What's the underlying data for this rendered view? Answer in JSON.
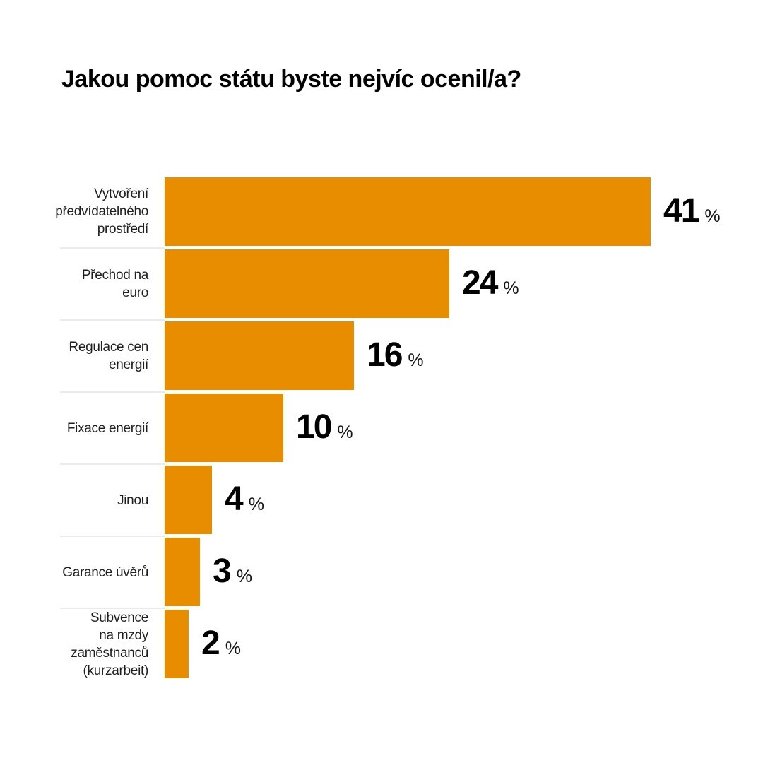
{
  "chart_data": {
    "type": "bar",
    "orientation": "horizontal",
    "title": "Jakou pomoc státu byste nejvíc ocenil/a?",
    "unit": "%",
    "xlim": [
      0,
      41
    ],
    "grid": false,
    "legend": false,
    "categories": [
      "Vytvoření předvídatelného prostředí",
      "Přechod na euro",
      "Regulace cen energií",
      "Fixace energií",
      "Jinou",
      "Garance úvěrů",
      "Subvence na mzdy zaměstnanců (kurzarbeit)"
    ],
    "values": [
      41,
      24,
      16,
      10,
      4,
      3,
      2
    ],
    "label_line_breaks": [
      [
        "Vytvoření",
        "předvídatelného",
        "prostředí"
      ],
      [
        "Přechod na",
        "euro"
      ],
      [
        "Regulace cen",
        "energií"
      ],
      [
        "Fixace energií"
      ],
      [
        "Jinou"
      ],
      [
        "Garance úvěrů"
      ],
      [
        "Subvence",
        "na mzdy",
        "zaměstnanců",
        "(kurzarbeit)"
      ]
    ],
    "bar_color": "#e88c00",
    "separator_color": "#ebebe8",
    "text_color": "#1f1f1f"
  }
}
